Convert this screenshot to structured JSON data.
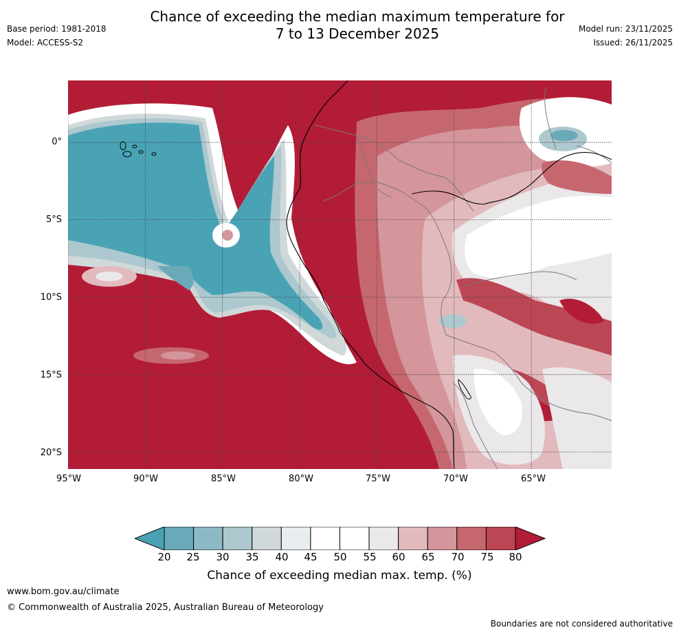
{
  "title": {
    "line1": "Chance of exceeding the median maximum temperature for",
    "line2": "7 to 13 December 2025"
  },
  "meta_left": {
    "base_period": "Base period: 1981-2018",
    "model": "Model: ACCESS-S2"
  },
  "meta_right": {
    "model_run": "Model run: 23/11/2025",
    "issued": "Issued: 26/11/2025"
  },
  "map": {
    "lat_labels": [
      "0°",
      "5°S",
      "10°S",
      "15°S",
      "20°S"
    ],
    "lon_labels": [
      "95°W",
      "90°W",
      "85°W",
      "80°W",
      "75°W",
      "70°W",
      "65°W"
    ],
    "lat_values": [
      0,
      -5,
      -10,
      -15,
      -20
    ],
    "lon_values": [
      -95,
      -90,
      -85,
      -80,
      -75,
      -70,
      -65
    ],
    "extent": {
      "lon_min": -95,
      "lon_max": -59.8,
      "lat_min": -21.1,
      "lat_max": 4
    }
  },
  "colorbar": {
    "ticks": [
      "20",
      "25",
      "30",
      "35",
      "40",
      "45",
      "50",
      "55",
      "60",
      "65",
      "70",
      "75",
      "80"
    ],
    "colors": [
      "#4aa3b5",
      "#6aaab8",
      "#8bbac6",
      "#adc8cf",
      "#d0d8da",
      "#e8eef0",
      "#ffffff",
      "#ffffff",
      "#ebe8ea",
      "#e2babd",
      "#d4959b",
      "#c6676f",
      "#bb4654",
      "#b21c37"
    ],
    "title": "Chance of exceeding median max. temp. (%)"
  },
  "footer": {
    "url": "www.bom.gov.au/climate",
    "copyright": "© Commonwealth of Australia 2025, Australian Bureau of Meteorology",
    "note": "Boundaries are not considered authoritative"
  }
}
